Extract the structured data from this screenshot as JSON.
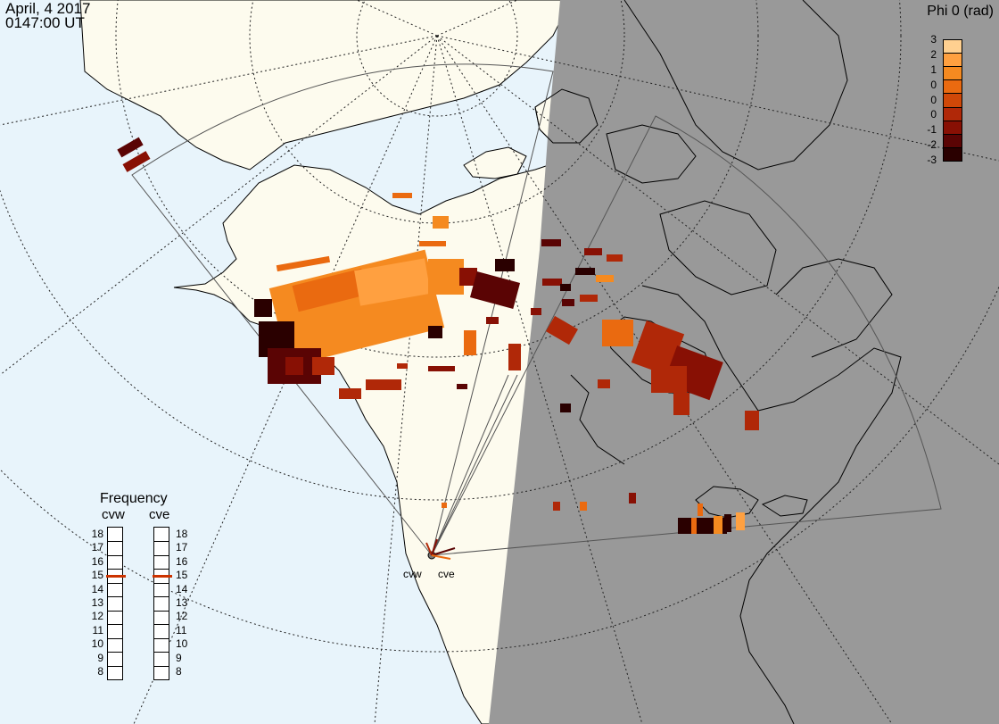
{
  "header": {
    "date": "April, 4 2017",
    "time": "0147:00 UT"
  },
  "colorbar": {
    "title": "Phi 0 (rad)",
    "ticks": [
      "3",
      "2",
      "1",
      "0",
      "0",
      "0",
      "-1",
      "-2",
      "-3"
    ],
    "colors": [
      "#ffd090",
      "#ffa040",
      "#f58a20",
      "#ea6a10",
      "#d04808",
      "#b02808",
      "#881004",
      "#5a0404",
      "#2a0000"
    ]
  },
  "radars": {
    "west": "cvw",
    "east": "cve"
  },
  "frequency": {
    "title": "Frequency",
    "left_label": "cvw",
    "right_label": "cve",
    "ticks": [
      "18",
      "17",
      "16",
      "15",
      "14",
      "13",
      "12",
      "11",
      "10",
      "9",
      "8"
    ],
    "cvw_value": 15,
    "cve_value": 15,
    "marker_color": "#cc3300"
  },
  "colors": {
    "ocean": "#e8f4fb",
    "land": "#fdfbee",
    "night": "#999999",
    "coast": "#000000"
  }
}
